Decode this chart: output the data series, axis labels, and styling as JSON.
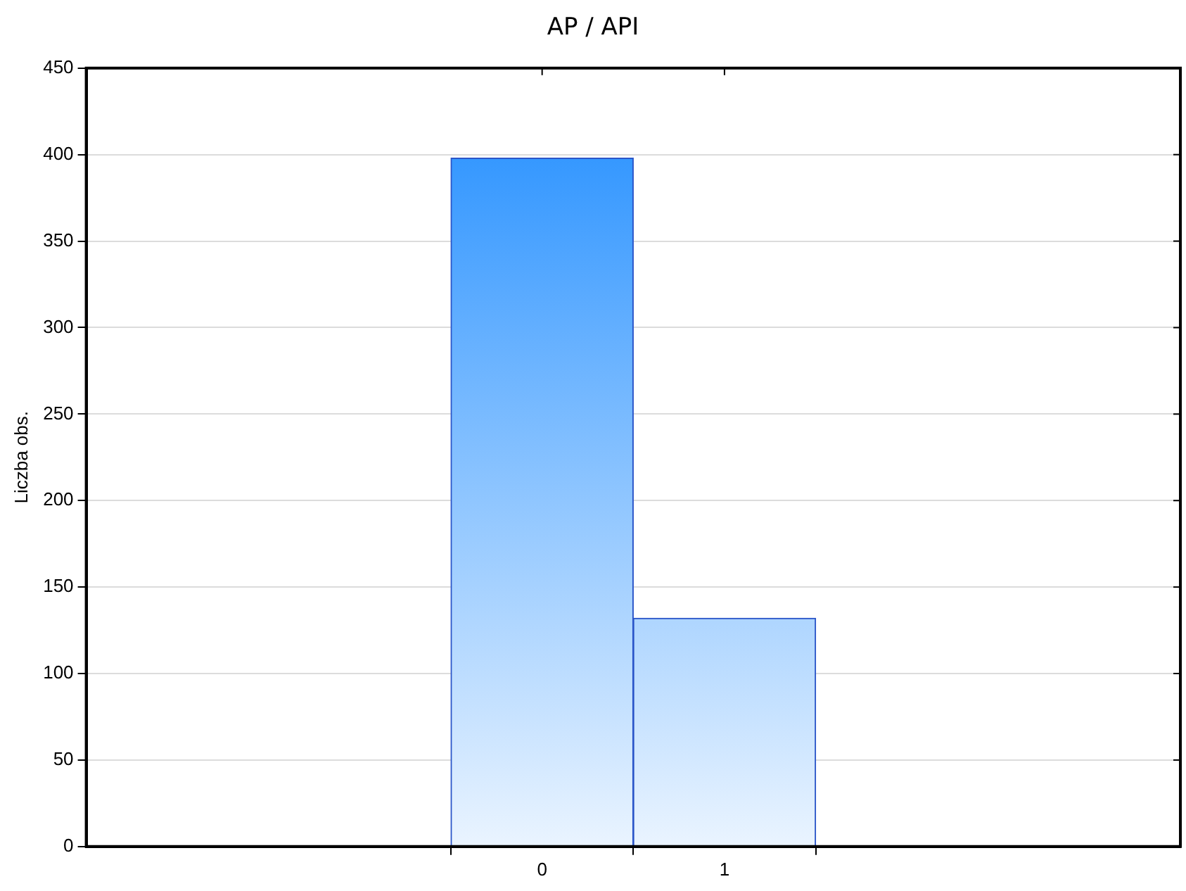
{
  "chart_data": {
    "type": "bar",
    "title": "AP / API",
    "ylabel": "Liczba obs.",
    "categories": [
      "0",
      "1"
    ],
    "values": [
      398,
      132
    ],
    "color": "#1e8cff",
    "ylim": [
      0,
      450
    ],
    "yticks": [
      0,
      50,
      100,
      150,
      200,
      250,
      300,
      350,
      400,
      450
    ],
    "grid": "y"
  }
}
